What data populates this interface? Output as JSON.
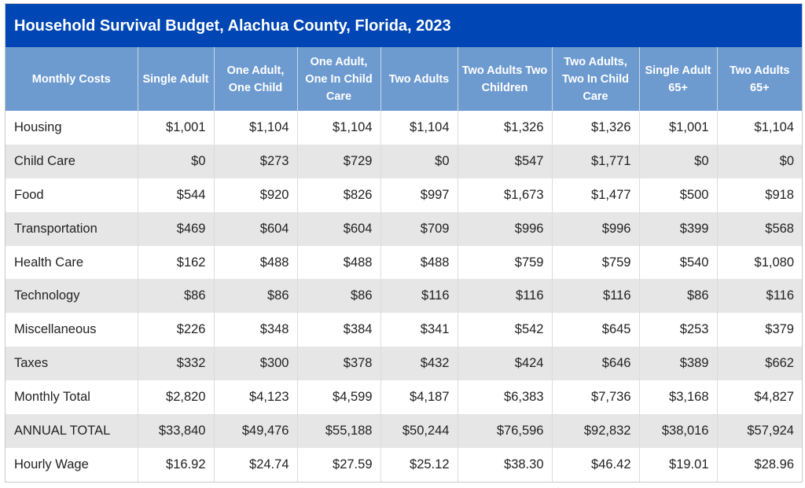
{
  "title": "Household Survival Budget, Alachua County, Florida, 2023",
  "colors": {
    "title_bar": "#0046b4",
    "header": "#6d9bd0",
    "alt_row": "#e6e6e6"
  },
  "chart_data": {
    "type": "table",
    "title": "Household Survival Budget, Alachua County, Florida, 2023",
    "columns": [
      "Monthly Costs",
      "Single Adult",
      "One Adult, One Child",
      "One Adult, One In Child Care",
      "Two Adults",
      "Two Adults Two Children",
      "Two Adults, Two In Child Care",
      "Single Adult 65+",
      "Two Adults 65+"
    ],
    "rows": [
      [
        "Housing",
        "$1,001",
        "$1,104",
        "$1,104",
        "$1,104",
        "$1,326",
        "$1,326",
        "$1,001",
        "$1,104"
      ],
      [
        "Child Care",
        "$0",
        "$273",
        "$729",
        "$0",
        "$547",
        "$1,771",
        "$0",
        "$0"
      ],
      [
        "Food",
        "$544",
        "$920",
        "$826",
        "$997",
        "$1,673",
        "$1,477",
        "$500",
        "$918"
      ],
      [
        "Transportation",
        "$469",
        "$604",
        "$604",
        "$709",
        "$996",
        "$996",
        "$399",
        "$568"
      ],
      [
        "Health Care",
        "$162",
        "$488",
        "$488",
        "$488",
        "$759",
        "$759",
        "$540",
        "$1,080"
      ],
      [
        "Technology",
        "$86",
        "$86",
        "$86",
        "$116",
        "$116",
        "$116",
        "$86",
        "$116"
      ],
      [
        "Miscellaneous",
        "$226",
        "$348",
        "$384",
        "$341",
        "$542",
        "$645",
        "$253",
        "$379"
      ],
      [
        "Taxes",
        "$332",
        "$300",
        "$378",
        "$432",
        "$424",
        "$646",
        "$389",
        "$662"
      ],
      [
        "Monthly Total",
        "$2,820",
        "$4,123",
        "$4,599",
        "$4,187",
        "$6,383",
        "$7,736",
        "$3,168",
        "$4,827"
      ],
      [
        "ANNUAL TOTAL",
        "$33,840",
        "$49,476",
        "$55,188",
        "$50,244",
        "$76,596",
        "$92,832",
        "$38,016",
        "$57,924"
      ],
      [
        "Hourly Wage",
        "$16.92",
        "$24.74",
        "$27.59",
        "$25.12",
        "$38.30",
        "$46.42",
        "$19.01",
        "$28.96"
      ]
    ]
  }
}
